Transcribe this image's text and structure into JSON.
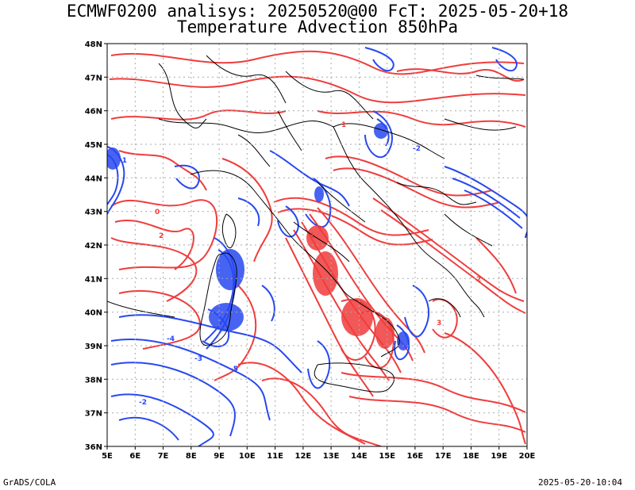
{
  "header": {
    "title_line1": "ECMWF0200 analisys: 20250520@00 FcT: 2025-05-20+18",
    "title_line2": "Temperature Advection 850hPa"
  },
  "axes": {
    "lon_labels": [
      "5E",
      "6E",
      "7E",
      "8E",
      "9E",
      "10E",
      "11E",
      "12E",
      "13E",
      "14E",
      "15E",
      "16E",
      "17E",
      "18E",
      "19E",
      "20E"
    ],
    "lat_labels": [
      "48N",
      "47N",
      "46N",
      "45N",
      "44N",
      "43N",
      "42N",
      "41N",
      "40N",
      "39N",
      "38N",
      "37N",
      "36N"
    ],
    "lon_range": [
      5,
      20
    ],
    "lat_range": [
      36,
      48
    ],
    "grid": "dotted"
  },
  "colors": {
    "warm_advection": "#f03c3c",
    "cold_advection": "#2848f0",
    "coastline": "#000000",
    "borders": "#000000",
    "grid": "#aaaaaa"
  },
  "contour_labels": [
    "-1",
    "-2",
    "-3",
    "-4",
    "-5",
    "0",
    "1",
    "2",
    "3"
  ],
  "footer": {
    "left": "GrADS/COLA",
    "right": "2025-05-20-10:04"
  }
}
